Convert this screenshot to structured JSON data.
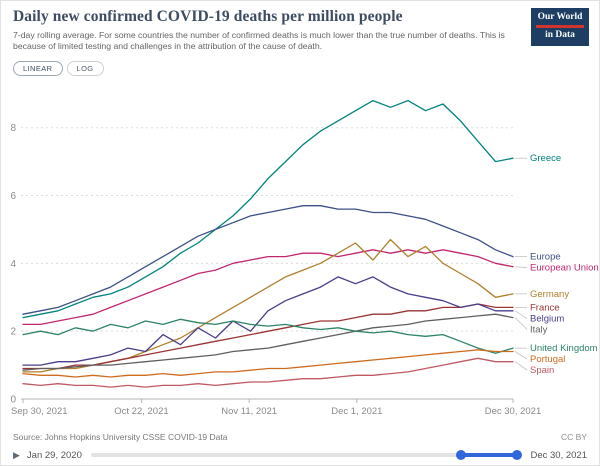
{
  "header": {
    "title": "Daily new confirmed COVID-19 deaths per million people",
    "subtitle": "7-day rolling average. For some countries the number of confirmed deaths is much lower than the true number of deaths. This is because of limited testing and challenges in the attribution of the cause of death.",
    "logo_line1": "Our World",
    "logo_line2": "in Data"
  },
  "controls": {
    "linear": "LINEAR",
    "log": "LOG"
  },
  "footer": {
    "source": "Source: Johns Hopkins University CSSE COVID-19 Data",
    "license": "CC BY"
  },
  "timeline": {
    "play_glyph": "▶",
    "start_date": "Jan 29, 2020",
    "end_date": "Dec 30, 2021"
  },
  "colors": {
    "slider_blue": "#3166dd",
    "logo_bg": "#1d3d63",
    "logo_accent": "#d0342c",
    "title_color": "#3d4c63"
  },
  "chart_data": {
    "type": "line",
    "title": "Daily new confirmed COVID-19 deaths per million people",
    "xlabel": "",
    "ylabel": "",
    "ylim": [
      0,
      9.2
    ],
    "yticks": [
      0,
      2,
      4,
      6,
      8
    ],
    "grid": "dashed-horizontal",
    "legend_position": "right-end-labels",
    "x_unit": "days since Sep 30, 2021",
    "x_max": 91,
    "x_ticks": [
      {
        "label": "Sep 30, 2021",
        "pos": 0
      },
      {
        "label": "Oct 22, 2021",
        "pos": 22
      },
      {
        "label": "Nov 11, 2021",
        "pos": 42
      },
      {
        "label": "Dec 1, 2021",
        "pos": 62
      },
      {
        "label": "Dec 30, 2021",
        "pos": 91
      }
    ],
    "series": [
      {
        "name": "Greece",
        "color": "#00847e",
        "values": [
          2.4,
          2.5,
          2.6,
          2.8,
          3.0,
          3.1,
          3.3,
          3.6,
          3.9,
          4.3,
          4.6,
          5.0,
          5.4,
          5.9,
          6.5,
          7.0,
          7.5,
          7.9,
          8.2,
          8.5,
          8.8,
          8.6,
          8.8,
          8.5,
          8.7,
          8.2,
          7.6,
          7.0,
          7.1
        ]
      },
      {
        "name": "Europe",
        "color": "#3d5086",
        "values": [
          2.5,
          2.6,
          2.7,
          2.9,
          3.1,
          3.3,
          3.6,
          3.9,
          4.2,
          4.5,
          4.8,
          5.0,
          5.2,
          5.4,
          5.5,
          5.6,
          5.7,
          5.7,
          5.6,
          5.6,
          5.5,
          5.5,
          5.4,
          5.3,
          5.1,
          4.9,
          4.7,
          4.4,
          4.2
        ]
      },
      {
        "name": "European Union",
        "color": "#c2266f",
        "values": [
          2.2,
          2.2,
          2.3,
          2.4,
          2.5,
          2.7,
          2.9,
          3.1,
          3.3,
          3.5,
          3.7,
          3.8,
          4.0,
          4.1,
          4.2,
          4.2,
          4.3,
          4.3,
          4.2,
          4.3,
          4.4,
          4.3,
          4.4,
          4.3,
          4.4,
          4.3,
          4.2,
          4.0,
          3.9
        ]
      },
      {
        "name": "Germany",
        "color": "#b0802b",
        "values": [
          0.8,
          0.8,
          0.9,
          0.9,
          1.0,
          1.1,
          1.2,
          1.4,
          1.6,
          1.8,
          2.1,
          2.4,
          2.7,
          3.0,
          3.3,
          3.6,
          3.8,
          4.0,
          4.3,
          4.6,
          4.1,
          4.7,
          4.2,
          4.5,
          4.0,
          3.7,
          3.4,
          3.0,
          3.1
        ]
      },
      {
        "name": "France",
        "color": "#9a3433",
        "values": [
          0.9,
          0.9,
          0.9,
          1.0,
          1.0,
          1.1,
          1.2,
          1.3,
          1.4,
          1.5,
          1.6,
          1.7,
          1.8,
          1.9,
          2.0,
          2.1,
          2.2,
          2.3,
          2.3,
          2.4,
          2.5,
          2.5,
          2.6,
          2.6,
          2.7,
          2.7,
          2.8,
          2.7,
          2.7
        ]
      },
      {
        "name": "Belgium",
        "color": "#4a3d8a",
        "values": [
          1.0,
          1.0,
          1.1,
          1.1,
          1.2,
          1.3,
          1.5,
          1.4,
          1.9,
          1.6,
          2.1,
          1.8,
          2.3,
          2.0,
          2.6,
          2.9,
          3.1,
          3.3,
          3.6,
          3.4,
          3.6,
          3.3,
          3.1,
          3.0,
          2.9,
          2.7,
          2.8,
          2.6,
          2.6
        ]
      },
      {
        "name": "Italy",
        "color": "#5f5f5f",
        "values": [
          0.85,
          0.9,
          0.9,
          0.95,
          1.0,
          1.0,
          1.05,
          1.1,
          1.15,
          1.2,
          1.25,
          1.3,
          1.4,
          1.45,
          1.5,
          1.6,
          1.7,
          1.8,
          1.9,
          2.0,
          2.1,
          2.15,
          2.2,
          2.3,
          2.35,
          2.4,
          2.45,
          2.5,
          2.4
        ]
      },
      {
        "name": "United Kingdom",
        "color": "#2c8465",
        "values": [
          1.9,
          2.0,
          1.9,
          2.1,
          2.0,
          2.2,
          2.1,
          2.3,
          2.2,
          2.35,
          2.25,
          2.2,
          2.3,
          2.2,
          2.15,
          2.2,
          2.1,
          2.05,
          2.1,
          2.0,
          1.95,
          2.0,
          1.9,
          1.85,
          1.9,
          1.7,
          1.5,
          1.35,
          1.5
        ]
      },
      {
        "name": "Portugal",
        "color": "#cf6b1f",
        "values": [
          0.75,
          0.7,
          0.7,
          0.65,
          0.7,
          0.65,
          0.7,
          0.7,
          0.75,
          0.7,
          0.75,
          0.8,
          0.8,
          0.85,
          0.9,
          0.9,
          0.95,
          1.0,
          1.05,
          1.1,
          1.15,
          1.2,
          1.25,
          1.3,
          1.35,
          1.4,
          1.45,
          1.4,
          1.4
        ]
      },
      {
        "name": "Spain",
        "color": "#bf5962",
        "values": [
          0.45,
          0.4,
          0.45,
          0.4,
          0.4,
          0.35,
          0.4,
          0.35,
          0.4,
          0.4,
          0.45,
          0.4,
          0.45,
          0.5,
          0.5,
          0.55,
          0.6,
          0.6,
          0.65,
          0.7,
          0.7,
          0.75,
          0.8,
          0.9,
          1.0,
          1.1,
          1.2,
          1.1,
          1.1
        ]
      }
    ]
  }
}
